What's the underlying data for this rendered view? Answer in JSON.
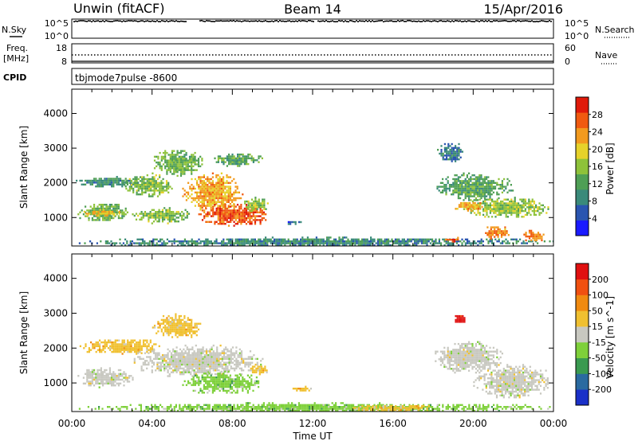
{
  "header": {
    "station": "Unwin (fitACF)",
    "beam": "Beam 14",
    "date": "15/Apr/2016"
  },
  "left_labels": {
    "nsky": "N.Sky",
    "freq_line1": "Freq.",
    "freq_line2": "[MHz]",
    "cpid": "CPID"
  },
  "right_labels": {
    "nsearch": "N.Search",
    "nave": "Nave"
  },
  "nsky_ticks": [
    "10^5",
    "10^0"
  ],
  "nsearch_ticks": [
    "10^5",
    "10^0"
  ],
  "freq_ticks": [
    "18",
    "8"
  ],
  "nave_ticks": [
    "60",
    "0"
  ],
  "cpid_text": "tbjmode7pulse -8600",
  "chart_data": [
    {
      "type": "heatmap",
      "name": "power",
      "ylabel": "Slant Range [km]",
      "ylim": [
        180,
        4700
      ],
      "yticks": [
        1000,
        2000,
        3000,
        4000
      ],
      "xlim": [
        0,
        24
      ],
      "colorbar_label": "Power [dB]",
      "colorbar_ticks": [
        4,
        8,
        12,
        16,
        20,
        24,
        28
      ],
      "colorbar_range": [
        0,
        32
      ],
      "colors": [
        "#1a1aff",
        "#2a55b0",
        "#3a8a7a",
        "#4f9f55",
        "#8ec23a",
        "#e6d22a",
        "#f29a1e",
        "#f05a10",
        "#e01a0a"
      ],
      "regions": [
        {
          "t0": 0.2,
          "t1": 3.0,
          "r0": 900,
          "r1": 1450,
          "value": 14
        },
        {
          "t0": 0.5,
          "t1": 2.5,
          "r0": 1050,
          "r1": 1250,
          "value": 21
        },
        {
          "t0": 0.2,
          "t1": 3.5,
          "r0": 1900,
          "r1": 2200,
          "value": 10
        },
        {
          "t0": 2.5,
          "t1": 5.0,
          "r0": 1600,
          "r1": 2300,
          "value": 15
        },
        {
          "t0": 4.0,
          "t1": 6.5,
          "r0": 2200,
          "r1": 3000,
          "value": 14
        },
        {
          "t0": 5.5,
          "t1": 8.5,
          "r0": 1200,
          "r1": 2300,
          "value": 22
        },
        {
          "t0": 7.0,
          "t1": 9.5,
          "r0": 2500,
          "r1": 2900,
          "value": 12
        },
        {
          "t0": 6.3,
          "t1": 9.8,
          "r0": 750,
          "r1": 1450,
          "value": 27
        },
        {
          "t0": 8.5,
          "t1": 9.8,
          "r0": 1200,
          "r1": 1600,
          "value": 16
        },
        {
          "t0": 3.0,
          "t1": 6.0,
          "r0": 850,
          "r1": 1300,
          "value": 15
        },
        {
          "t0": 0.0,
          "t1": 24.0,
          "r0": 180,
          "r1": 450,
          "value": 9
        },
        {
          "t0": 10.5,
          "t1": 11.5,
          "r0": 800,
          "r1": 950,
          "value": 6
        },
        {
          "t0": 18.2,
          "t1": 19.5,
          "r0": 2600,
          "r1": 3200,
          "value": 8
        },
        {
          "t0": 18.0,
          "t1": 22.0,
          "r0": 1500,
          "r1": 2300,
          "value": 12
        },
        {
          "t0": 19.5,
          "t1": 23.8,
          "r0": 1000,
          "r1": 1600,
          "value": 16
        },
        {
          "t0": 19.0,
          "t1": 20.5,
          "r0": 1200,
          "r1": 1500,
          "value": 22
        },
        {
          "t0": 20.5,
          "t1": 21.8,
          "r0": 400,
          "r1": 800,
          "value": 24
        },
        {
          "t0": 22.5,
          "t1": 23.5,
          "r0": 300,
          "r1": 700,
          "value": 25
        },
        {
          "t0": 18.5,
          "t1": 19.3,
          "r0": 300,
          "r1": 500,
          "value": 26
        }
      ]
    },
    {
      "type": "heatmap",
      "name": "velocity",
      "ylabel": "Slant Range [km]",
      "ylim": [
        180,
        4700
      ],
      "yticks": [
        1000,
        2000,
        3000,
        4000
      ],
      "xlim": [
        0,
        24
      ],
      "xticks": [
        "00:00",
        "04:00",
        "08:00",
        "12:00",
        "16:00",
        "20:00",
        "00:00"
      ],
      "xlabel": "Time UT",
      "colorbar_label": "Velocity [m s^-1]",
      "colorbar_ticks": [
        "200",
        "100",
        "50",
        "15",
        "-15",
        "-50",
        "-100",
        "-200"
      ],
      "colors": [
        "#1a30c8",
        "#2a6aa0",
        "#3a9a50",
        "#7ed03a",
        "#c8c8c0",
        "#f0c030",
        "#f08a10",
        "#f05010",
        "#e01010"
      ],
      "regions": [
        {
          "t0": 0.2,
          "t1": 3.0,
          "r0": 900,
          "r1": 1450,
          "value": "gray"
        },
        {
          "t0": 0.3,
          "t1": 4.5,
          "r0": 1850,
          "r1": 2300,
          "value": "orange"
        },
        {
          "t0": 4.0,
          "t1": 6.5,
          "r0": 2300,
          "r1": 3000,
          "value": "orange"
        },
        {
          "t0": 3.0,
          "t1": 9.5,
          "r0": 1200,
          "r1": 2100,
          "value": "gray"
        },
        {
          "t0": 5.5,
          "t1": 9.5,
          "r0": 700,
          "r1": 1350,
          "value": "green"
        },
        {
          "t0": 8.8,
          "t1": 9.8,
          "r0": 1250,
          "r1": 1550,
          "value": "orange"
        },
        {
          "t0": 0.0,
          "t1": 24.0,
          "r0": 180,
          "r1": 450,
          "value": "green"
        },
        {
          "t0": 11.0,
          "t1": 12.0,
          "r0": 780,
          "r1": 920,
          "value": "orange"
        },
        {
          "t0": 14.0,
          "t1": 18.0,
          "r0": 180,
          "r1": 420,
          "value": "orange"
        },
        {
          "t0": 18.0,
          "t1": 21.5,
          "r0": 1300,
          "r1": 2200,
          "value": "gray"
        },
        {
          "t0": 20.0,
          "t1": 23.8,
          "r0": 600,
          "r1": 1600,
          "value": "gray"
        },
        {
          "t0": 19.0,
          "t1": 19.6,
          "r0": 2700,
          "r1": 3000,
          "value": "red"
        }
      ]
    }
  ]
}
